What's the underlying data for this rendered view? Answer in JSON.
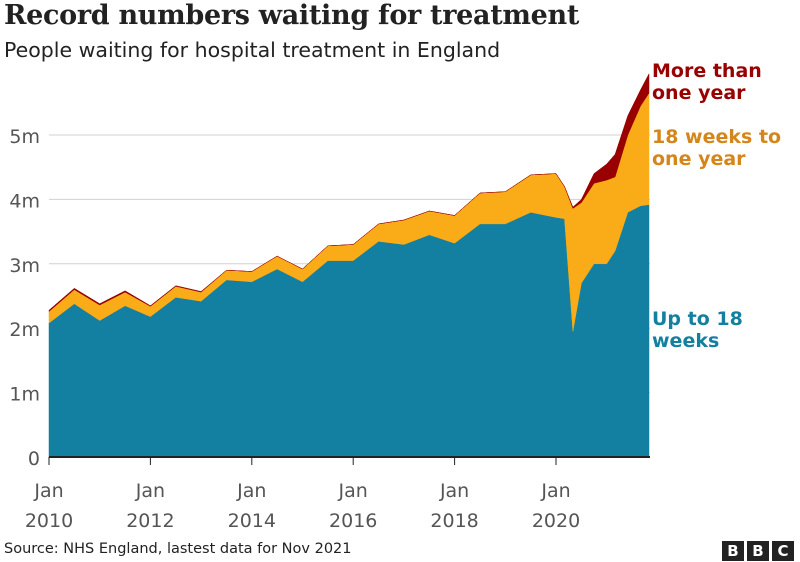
{
  "title": "Record numbers waiting for treatment",
  "subtitle": "People waiting for hospital treatment in England",
  "source": "Source: NHS England, lastest data for Nov 2021",
  "logo_text": "BBC",
  "chart_data": {
    "type": "area",
    "stacked": true,
    "title": "Record numbers waiting for treatment",
    "subtitle": "People waiting for hospital treatment in England",
    "ylim": [
      0,
      6
    ],
    "y_ticks": [
      0,
      1,
      2,
      3,
      4,
      5
    ],
    "y_tick_labels": [
      "0",
      "1m",
      "2m",
      "3m",
      "4m",
      "5m"
    ],
    "x_ticks": [
      "2010-01",
      "2012-01",
      "2014-01",
      "2016-01",
      "2018-01",
      "2020-01"
    ],
    "x_tick_labels": [
      [
        "Jan",
        "2010"
      ],
      [
        "Jan",
        "2012"
      ],
      [
        "Jan",
        "2014"
      ],
      [
        "Jan",
        "2016"
      ],
      [
        "Jan",
        "2018"
      ],
      [
        "Jan",
        "2020"
      ]
    ],
    "grid": true,
    "legend": "direct labels at right end",
    "units": "millions",
    "x": [
      "2010-01",
      "2010-07",
      "2011-01",
      "2011-07",
      "2012-01",
      "2012-07",
      "2013-01",
      "2013-07",
      "2014-01",
      "2014-07",
      "2015-01",
      "2015-07",
      "2016-01",
      "2016-07",
      "2017-01",
      "2017-07",
      "2018-01",
      "2018-07",
      "2019-01",
      "2019-07",
      "2020-01",
      "2020-03",
      "2020-05",
      "2020-07",
      "2020-10",
      "2021-01",
      "2021-03",
      "2021-06",
      "2021-09",
      "2021-11"
    ],
    "series": [
      {
        "name": "Up to 18 weeks",
        "color": "#1380a1",
        "values": [
          2.08,
          2.38,
          2.12,
          2.35,
          2.18,
          2.48,
          2.42,
          2.75,
          2.72,
          2.92,
          2.72,
          3.05,
          3.05,
          3.35,
          3.3,
          3.45,
          3.32,
          3.62,
          3.62,
          3.8,
          3.72,
          3.7,
          1.95,
          2.7,
          3.0,
          3.0,
          3.2,
          3.8,
          3.9,
          3.92
        ]
      },
      {
        "name": "18 weeks to one year",
        "color": "#faab18",
        "values": [
          0.18,
          0.22,
          0.24,
          0.21,
          0.16,
          0.17,
          0.14,
          0.15,
          0.16,
          0.2,
          0.2,
          0.23,
          0.25,
          0.27,
          0.38,
          0.37,
          0.43,
          0.48,
          0.5,
          0.58,
          0.68,
          0.5,
          1.91,
          1.25,
          1.25,
          1.3,
          1.15,
          1.2,
          1.55,
          1.73
        ]
      },
      {
        "name": "More than one year",
        "color": "#990000",
        "values": [
          0.02,
          0.02,
          0.02,
          0.02,
          0.01,
          0.01,
          0.01,
          0.0,
          0.0,
          0.0,
          0.0,
          0.0,
          0.0,
          0.0,
          0.0,
          0.0,
          0.0,
          0.0,
          0.0,
          0.0,
          0.0,
          0.0,
          0.02,
          0.05,
          0.15,
          0.25,
          0.35,
          0.3,
          0.25,
          0.3
        ]
      }
    ]
  }
}
